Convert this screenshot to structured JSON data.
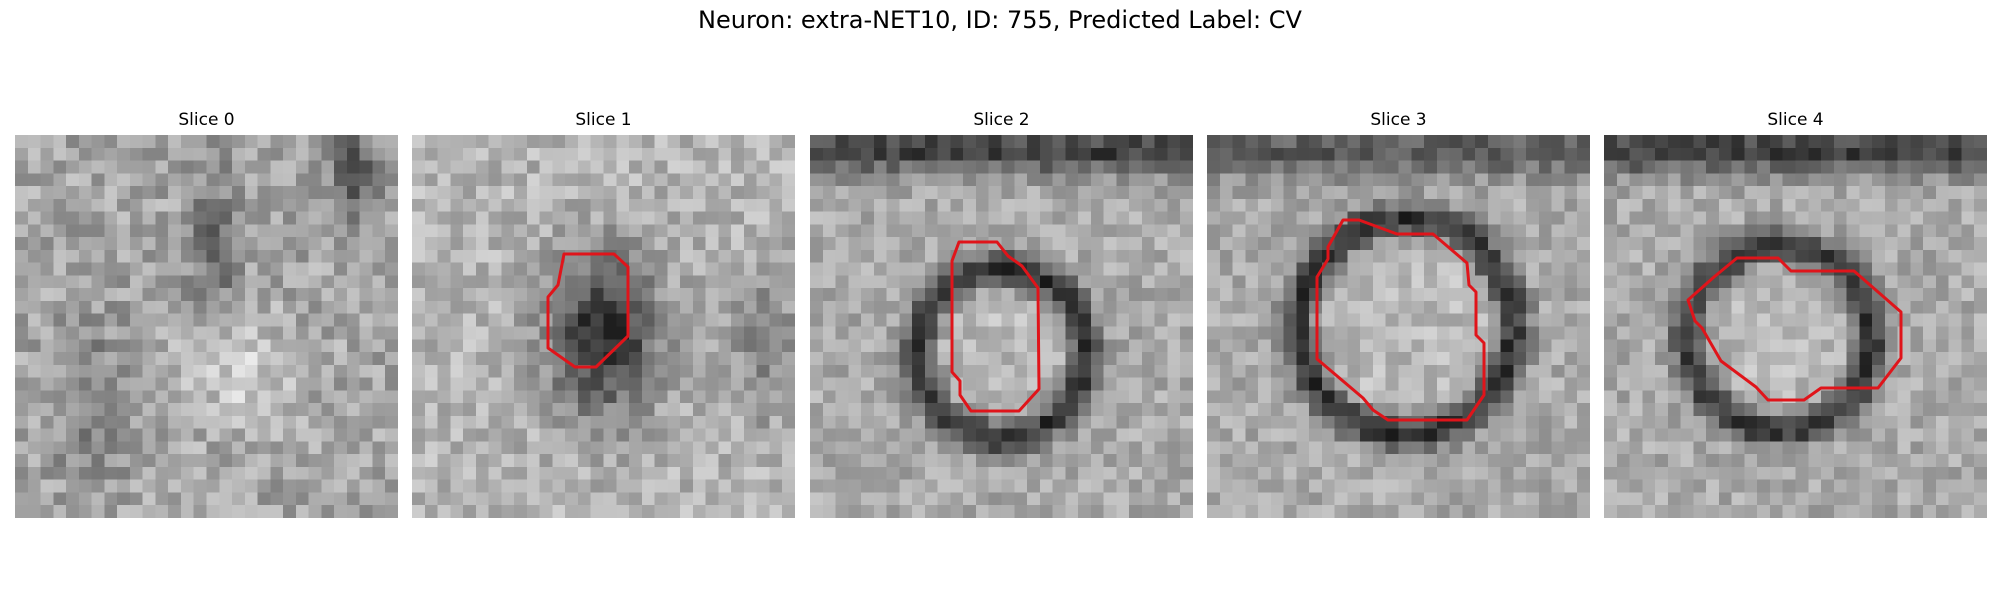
{
  "figure": {
    "title": "Neuron: extra-NET10, ID: 755, Predicted Label: CV",
    "outline_color": "#e0141a"
  },
  "panels": [
    {
      "title": "Slice 0",
      "has_outline": false
    },
    {
      "title": "Slice 1",
      "has_outline": true
    },
    {
      "title": "Slice 2",
      "has_outline": true
    },
    {
      "title": "Slice 3",
      "has_outline": true
    },
    {
      "title": "Slice 4",
      "has_outline": true
    }
  ]
}
